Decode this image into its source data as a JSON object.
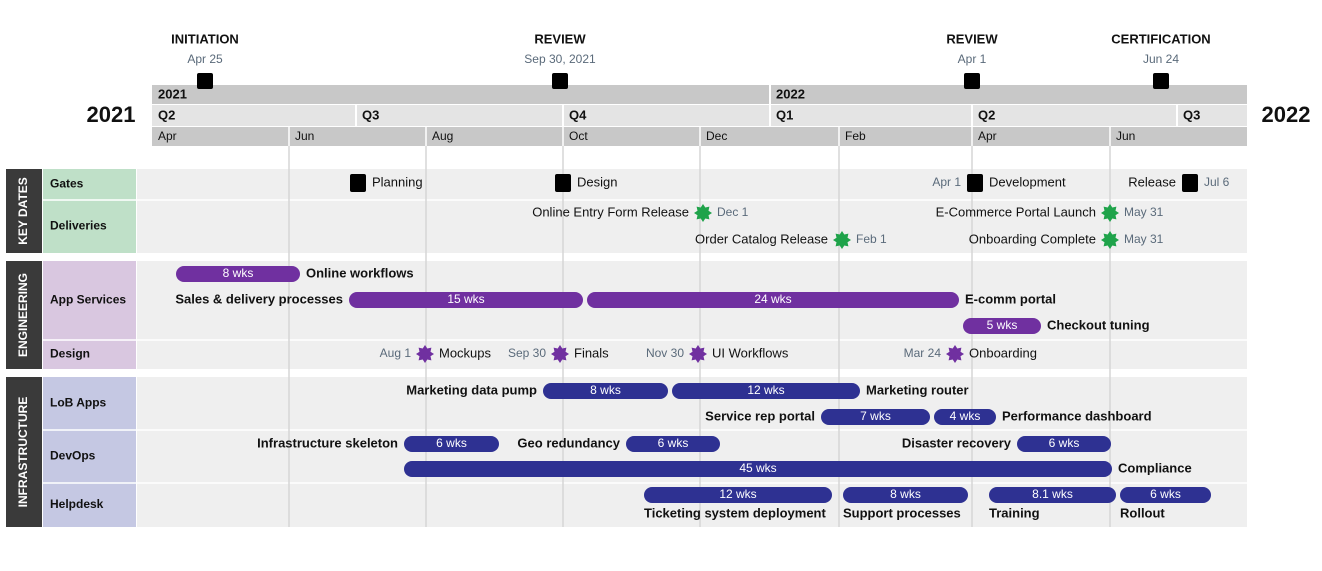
{
  "header": {
    "year_left": "2021",
    "year_right": "2022",
    "milestones": [
      {
        "title": "INITIATION",
        "date": "Apr 25"
      },
      {
        "title": "REVIEW",
        "date": "Sep 30, 2021"
      },
      {
        "title": "REVIEW",
        "date": "Apr 1"
      },
      {
        "title": "CERTIFICATION",
        "date": "Jun 24"
      }
    ],
    "years": [
      "2021",
      "2022"
    ],
    "quarters": [
      "Q2",
      "Q3",
      "Q4",
      "Q1",
      "Q2",
      "Q3"
    ],
    "months": [
      "Apr",
      "Jun",
      "Aug",
      "Oct",
      "Dec",
      "Feb",
      "Apr",
      "Jun"
    ]
  },
  "sections": [
    {
      "title": "KEY DATES",
      "rows": [
        {
          "label": "Gates",
          "items": [
            {
              "name": "Planning"
            },
            {
              "name": "Design"
            },
            {
              "name": "Development",
              "date": "Apr 1"
            },
            {
              "name": "Release",
              "date": "Jul 6"
            }
          ]
        },
        {
          "label": "Deliveries",
          "items": [
            {
              "name": "Online Entry Form Release",
              "date": "Dec 1"
            },
            {
              "name": "Order Catalog Release",
              "date": "Feb 1"
            },
            {
              "name": "E-Commerce Portal Launch",
              "date": "May 31"
            },
            {
              "name": "Onboarding Complete",
              "date": "May 31"
            }
          ]
        }
      ]
    },
    {
      "title": "ENGINEERING",
      "rows": [
        {
          "label": "App Services",
          "items": [
            {
              "name": "Online workflows",
              "duration": "8 wks"
            },
            {
              "name": "Sales & delivery processes",
              "duration": "15 wks"
            },
            {
              "name": "E-comm portal",
              "duration": "24 wks"
            },
            {
              "name": "Checkout tuning",
              "duration": "5 wks"
            }
          ]
        },
        {
          "label": "Design",
          "items": [
            {
              "name": "Mockups",
              "date": "Aug 1"
            },
            {
              "name": "Finals",
              "date": "Sep 30"
            },
            {
              "name": "UI Workflows",
              "date": "Nov 30"
            },
            {
              "name": "Onboarding",
              "date": "Mar 24"
            }
          ]
        }
      ]
    },
    {
      "title": "INFRASTRUCTURE",
      "rows": [
        {
          "label": "LoB Apps",
          "items": [
            {
              "name": "Marketing data pump",
              "duration": "8 wks"
            },
            {
              "name": "Marketing router",
              "duration": "12 wks"
            },
            {
              "name": "Service rep portal",
              "duration": "7 wks"
            },
            {
              "name": "Performance dashboard",
              "duration": "4 wks"
            }
          ]
        },
        {
          "label": "DevOps",
          "items": [
            {
              "name": "Infrastructure skeleton",
              "duration": "6 wks"
            },
            {
              "name": "Geo redundancy",
              "duration": "6 wks"
            },
            {
              "name": "Disaster recovery",
              "duration": "6 wks"
            },
            {
              "name": "Compliance",
              "duration": "45 wks"
            }
          ]
        },
        {
          "label": "Helpdesk",
          "items": [
            {
              "name": "Ticketing system deployment",
              "duration": "12 wks"
            },
            {
              "name": "Support processes",
              "duration": "8 wks"
            },
            {
              "name": "Training",
              "duration": "8.1 wks"
            },
            {
              "name": "Rollout",
              "duration": "6 wks"
            }
          ]
        }
      ]
    }
  ]
}
